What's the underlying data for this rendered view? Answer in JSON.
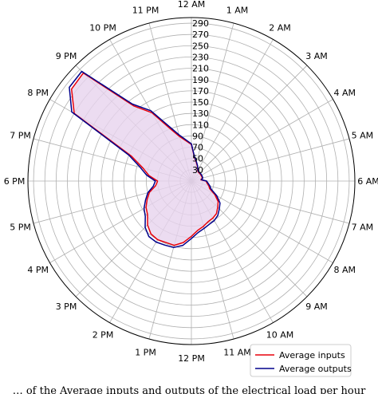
{
  "chart_data": {
    "type": "radar",
    "projection": "polar",
    "theta_direction": "clockwise",
    "theta_zero": "top",
    "categories": [
      "12 AM",
      "1 AM",
      "2 AM",
      "3 AM",
      "4 AM",
      "5 AM",
      "6 AM",
      "7 AM",
      "8 AM",
      "9 AM",
      "10 AM",
      "11 AM",
      "12 PM",
      "1 PM",
      "2 PM",
      "3 PM",
      "4 PM",
      "5 PM",
      "6 PM",
      "7 PM",
      "8 PM",
      "9 PM",
      "10 PM",
      "11 PM"
    ],
    "radial_ticks": [
      "30",
      "50",
      "70",
      "90",
      "110",
      "130",
      "150",
      "170",
      "190",
      "210",
      "230",
      "250",
      "270",
      "290"
    ],
    "rlim": [
      10,
      300
    ],
    "grid": true,
    "legend_position": "lower-right",
    "series": [
      {
        "name": "Average inputs",
        "color": "#e8000b",
        "fill": "#e7d3ee",
        "points": [
          {
            "h": 0,
            "r": 75
          },
          {
            "h": 0.5,
            "r": 52
          },
          {
            "h": 1,
            "r": 44
          },
          {
            "h": 1.5,
            "r": 38
          },
          {
            "h": 2,
            "r": 32
          },
          {
            "h": 2.5,
            "r": 30
          },
          {
            "h": 3,
            "r": 30
          },
          {
            "h": 3.5,
            "r": 30
          },
          {
            "h": 4,
            "r": 30
          },
          {
            "h": 4.5,
            "r": 30
          },
          {
            "h": 5,
            "r": 30
          },
          {
            "h": 5.5,
            "r": 27
          },
          {
            "h": 6,
            "r": 36
          },
          {
            "h": 6.5,
            "r": 38
          },
          {
            "h": 7,
            "r": 42
          },
          {
            "h": 7.5,
            "r": 45
          },
          {
            "h": 8,
            "r": 58
          },
          {
            "h": 8.5,
            "r": 70
          },
          {
            "h": 9,
            "r": 76
          },
          {
            "h": 9.5,
            "r": 83
          },
          {
            "h": 10,
            "r": 86
          },
          {
            "h": 10.5,
            "r": 88
          },
          {
            "h": 11,
            "r": 93
          },
          {
            "h": 11.5,
            "r": 98
          },
          {
            "h": 12,
            "r": 108
          },
          {
            "h": 12.5,
            "r": 120
          },
          {
            "h": 13,
            "r": 128
          },
          {
            "h": 13.5,
            "r": 128
          },
          {
            "h": 14,
            "r": 130
          },
          {
            "h": 14.5,
            "r": 128
          },
          {
            "h": 15,
            "r": 120
          },
          {
            "h": 15.5,
            "r": 108
          },
          {
            "h": 16,
            "r": 103
          },
          {
            "h": 16.5,
            "r": 95
          },
          {
            "h": 17,
            "r": 87
          },
          {
            "h": 17.5,
            "r": 74
          },
          {
            "h": 18,
            "r": 70
          },
          {
            "h": 18.5,
            "r": 86
          },
          {
            "h": 19,
            "r": 99
          },
          {
            "h": 19.5,
            "r": 125
          },
          {
            "h": 20,
            "r": 250
          },
          {
            "h": 20.5,
            "r": 278
          },
          {
            "h": 21,
            "r": 281
          },
          {
            "h": 21.5,
            "r": 178
          },
          {
            "h": 22,
            "r": 150
          },
          {
            "h": 22.5,
            "r": 112
          },
          {
            "h": 23,
            "r": 92
          }
        ]
      },
      {
        "name": "Average outputs",
        "color": "#00008b",
        "fill": "none",
        "points": [
          {
            "h": 0,
            "r": 76
          },
          {
            "h": 0.5,
            "r": 53
          },
          {
            "h": 1,
            "r": 45
          },
          {
            "h": 1.5,
            "r": 39
          },
          {
            "h": 2,
            "r": 33
          },
          {
            "h": 2.5,
            "r": 31
          },
          {
            "h": 3,
            "r": 31
          },
          {
            "h": 3.5,
            "r": 31
          },
          {
            "h": 4,
            "r": 31
          },
          {
            "h": 4.5,
            "r": 31
          },
          {
            "h": 5,
            "r": 31
          },
          {
            "h": 5.5,
            "r": 28
          },
          {
            "h": 6,
            "r": 37
          },
          {
            "h": 6.5,
            "r": 40
          },
          {
            "h": 7,
            "r": 44
          },
          {
            "h": 7.5,
            "r": 48
          },
          {
            "h": 8,
            "r": 62
          },
          {
            "h": 8.5,
            "r": 74
          },
          {
            "h": 9,
            "r": 80
          },
          {
            "h": 9.5,
            "r": 87
          },
          {
            "h": 10,
            "r": 91
          },
          {
            "h": 10.5,
            "r": 93
          },
          {
            "h": 11,
            "r": 97
          },
          {
            "h": 11.5,
            "r": 102
          },
          {
            "h": 12,
            "r": 112
          },
          {
            "h": 12.5,
            "r": 125
          },
          {
            "h": 13,
            "r": 132
          },
          {
            "h": 13.5,
            "r": 133
          },
          {
            "h": 14,
            "r": 135
          },
          {
            "h": 14.5,
            "r": 134
          },
          {
            "h": 15,
            "r": 126
          },
          {
            "h": 15.5,
            "r": 113
          },
          {
            "h": 16,
            "r": 107
          },
          {
            "h": 16.5,
            "r": 98
          },
          {
            "h": 17,
            "r": 90
          },
          {
            "h": 17.5,
            "r": 78
          },
          {
            "h": 18,
            "r": 74
          },
          {
            "h": 18.5,
            "r": 90
          },
          {
            "h": 19,
            "r": 104
          },
          {
            "h": 19.5,
            "r": 130
          },
          {
            "h": 20,
            "r": 255
          },
          {
            "h": 20.5,
            "r": 283
          },
          {
            "h": 21,
            "r": 285
          },
          {
            "h": 21.5,
            "r": 182
          },
          {
            "h": 22,
            "r": 154
          },
          {
            "h": 22.5,
            "r": 116
          },
          {
            "h": 23,
            "r": 95
          }
        ]
      }
    ]
  },
  "caption": "… of the Average inputs and outputs of the electrical load per hour"
}
